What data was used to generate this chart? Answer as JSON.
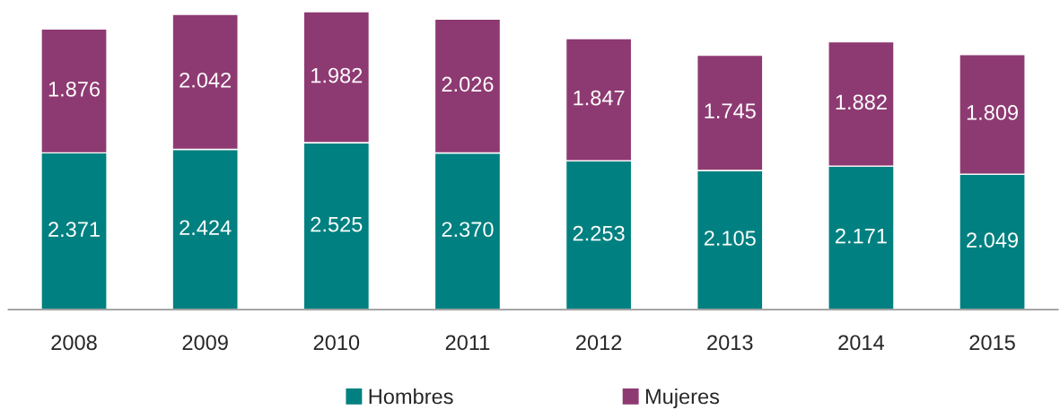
{
  "chart_data": {
    "type": "bar",
    "stacked": true,
    "categories": [
      "2008",
      "2009",
      "2010",
      "2011",
      "2012",
      "2013",
      "2014",
      "2015"
    ],
    "series": [
      {
        "name": "Hombres",
        "color": "#008080",
        "values": [
          2371,
          2424,
          2525,
          2370,
          2253,
          2105,
          2171,
          2049
        ],
        "value_labels": [
          "2.371",
          "2.424",
          "2.525",
          "2.370",
          "2.253",
          "2.105",
          "2.171",
          "2.049"
        ]
      },
      {
        "name": "Mujeres",
        "color": "#8e3a72",
        "values": [
          1876,
          2042,
          1982,
          2026,
          1847,
          1745,
          1882,
          1809
        ],
        "value_labels": [
          "1.876",
          "2.042",
          "1.982",
          "2.026",
          "1.847",
          "1.745",
          "1.882",
          "1.809"
        ]
      }
    ],
    "tick_labels": "x",
    "grid": false,
    "legend": "bottom"
  }
}
